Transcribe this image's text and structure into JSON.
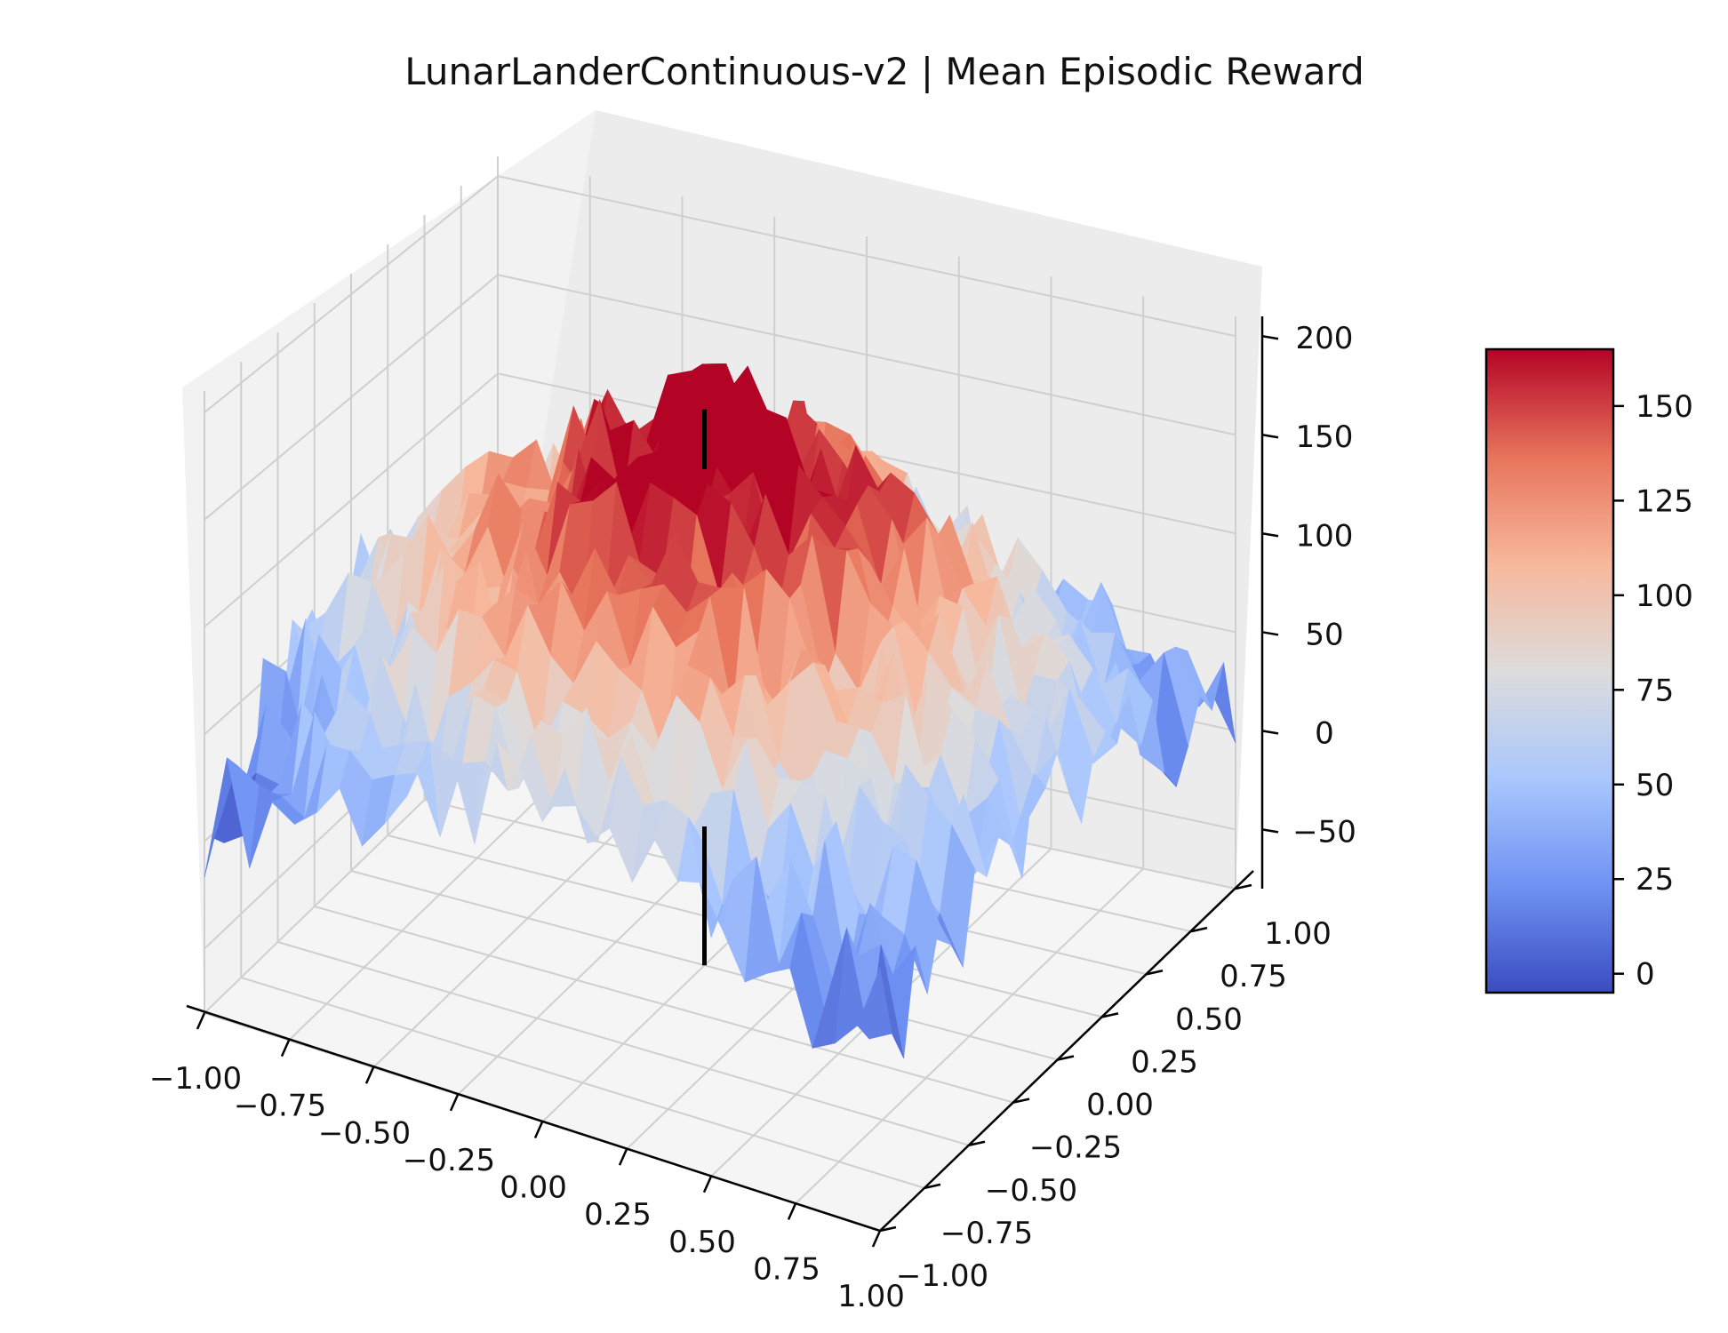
{
  "chart_data": {
    "type": "surface3d",
    "title": "LunarLanderContinuous-v2 | Mean Episodic Reward",
    "xlabel": "",
    "ylabel": "",
    "zlabel": "",
    "x_ticks": [
      "−1.00",
      "−0.75",
      "−0.50",
      "−0.25",
      "0.00",
      "0.25",
      "0.50",
      "0.75",
      "1.00"
    ],
    "y_ticks": [
      "−1.00",
      "−0.75",
      "−0.50",
      "−0.25",
      "0.00",
      "0.25",
      "0.50",
      "0.75",
      "1.00"
    ],
    "z_ticks": [
      "−50",
      "0",
      "50",
      "100",
      "150",
      "200"
    ],
    "xlim": [
      -1,
      1
    ],
    "ylim": [
      -1,
      1
    ],
    "zlim": [
      -80,
      210
    ],
    "grid": true,
    "colormap": "coolwarm",
    "colorbar": {
      "ticks": [
        "0",
        "25",
        "50",
        "75",
        "100",
        "125",
        "150"
      ],
      "range": [
        -5,
        165
      ],
      "colors": [
        "#3b4cc0",
        "#6f92f3",
        "#aac7fd",
        "#dddcdc",
        "#f7b89c",
        "#e7745b",
        "#b40426"
      ]
    },
    "surface_model": {
      "peak_value": 165,
      "peak_location": [
        0,
        0
      ],
      "edge_value_far_corner": -5,
      "noise_amplitude": 30
    },
    "marker_line": {
      "x": 0,
      "y": 0,
      "z_range": [
        -80,
        190
      ],
      "color": "#000000"
    }
  }
}
